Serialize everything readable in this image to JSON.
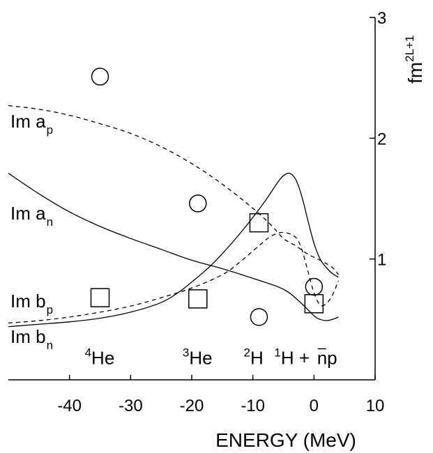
{
  "chart_data": {
    "type": "line",
    "title": "",
    "xlabel": "ENERGY (MeV)",
    "ylabel": "fm",
    "ylabel_sup": "2L+1",
    "xlim": [
      -50,
      10
    ],
    "ylim": [
      0,
      3
    ],
    "x_ticks": [
      -40,
      -30,
      -20,
      -10,
      0,
      10
    ],
    "y_ticks": [
      1,
      2,
      3
    ],
    "grid": false,
    "series": [
      {
        "name": "Im a_p",
        "label_main": "Im a",
        "label_sub": "p",
        "style": "dashed",
        "points": [
          [
            -50,
            2.27
          ],
          [
            -45,
            2.24
          ],
          [
            -40,
            2.19
          ],
          [
            -35,
            2.12
          ],
          [
            -30,
            2.04
          ],
          [
            -25,
            1.93
          ],
          [
            -20,
            1.79
          ],
          [
            -15,
            1.62
          ],
          [
            -10,
            1.42
          ],
          [
            -7,
            1.28
          ],
          [
            -5,
            1.17
          ],
          [
            -3,
            1.11
          ],
          [
            -1,
            1.04
          ],
          [
            1,
            0.99
          ],
          [
            3,
            0.93
          ],
          [
            4,
            0.87
          ]
        ]
      },
      {
        "name": "Im a_n",
        "label_main": "Im a",
        "label_sub": "n",
        "style": "solid",
        "points": [
          [
            -50,
            1.71
          ],
          [
            -45,
            1.54
          ],
          [
            -40,
            1.39
          ],
          [
            -35,
            1.27
          ],
          [
            -30,
            1.17
          ],
          [
            -25,
            1.08
          ],
          [
            -20,
            0.99
          ],
          [
            -15,
            0.92
          ],
          [
            -10,
            0.84
          ],
          [
            -5,
            0.75
          ],
          [
            -2,
            0.63
          ],
          [
            0,
            0.53
          ],
          [
            1,
            0.5
          ],
          [
            2,
            0.49
          ],
          [
            3,
            0.5
          ],
          [
            4,
            0.52
          ]
        ]
      },
      {
        "name": "Im b_p",
        "label_main": "Im b",
        "label_sub": "p",
        "style": "dashed",
        "points": [
          [
            -50,
            0.47
          ],
          [
            -45,
            0.49
          ],
          [
            -40,
            0.52
          ],
          [
            -35,
            0.56
          ],
          [
            -30,
            0.61
          ],
          [
            -25,
            0.68
          ],
          [
            -20,
            0.76
          ],
          [
            -15,
            0.87
          ],
          [
            -12,
            0.98
          ],
          [
            -9,
            1.11
          ],
          [
            -7,
            1.19
          ],
          [
            -5,
            1.22
          ],
          [
            -3,
            1.18
          ],
          [
            -2,
            1.08
          ],
          [
            -1,
            0.9
          ],
          [
            0,
            0.72
          ],
          [
            1,
            0.62
          ],
          [
            2,
            0.63
          ],
          [
            3,
            0.7
          ],
          [
            4,
            0.82
          ]
        ]
      },
      {
        "name": "Im b_n",
        "label_main": "Im b",
        "label_sub": "n",
        "style": "solid",
        "points": [
          [
            -50,
            0.44
          ],
          [
            -45,
            0.46
          ],
          [
            -40,
            0.48
          ],
          [
            -35,
            0.51
          ],
          [
            -30,
            0.56
          ],
          [
            -25,
            0.64
          ],
          [
            -22,
            0.73
          ],
          [
            -20,
            0.81
          ],
          [
            -17,
            0.94
          ],
          [
            -14,
            1.1
          ],
          [
            -11,
            1.28
          ],
          [
            -8,
            1.48
          ],
          [
            -6,
            1.63
          ],
          [
            -5,
            1.69
          ],
          [
            -4,
            1.71
          ],
          [
            -3,
            1.66
          ],
          [
            -2,
            1.52
          ],
          [
            -1,
            1.32
          ],
          [
            0,
            1.13
          ],
          [
            1,
            1.0
          ],
          [
            2,
            0.93
          ],
          [
            3,
            0.88
          ],
          [
            4,
            0.85
          ]
        ]
      }
    ],
    "markers": [
      {
        "shape": "circle",
        "x": -35,
        "y": 2.51
      },
      {
        "shape": "circle",
        "x": -19,
        "y": 1.46
      },
      {
        "shape": "circle",
        "x": -9,
        "y": 0.52
      },
      {
        "shape": "circle",
        "x": 0,
        "y": 0.77
      },
      {
        "shape": "square",
        "x": -35,
        "y": 0.68
      },
      {
        "shape": "square",
        "x": -19,
        "y": 0.67
      },
      {
        "shape": "square",
        "x": -9,
        "y": 1.3
      },
      {
        "shape": "square",
        "x": 0,
        "y": 0.63
      }
    ],
    "annotations": [
      {
        "sup": "4",
        "text": "He",
        "x": -37.5,
        "y": 0.13
      },
      {
        "sup": "3",
        "text": "He",
        "x": -21.5,
        "y": 0.13
      },
      {
        "sup": "2",
        "text": "H",
        "x": -11.5,
        "y": 0.13
      },
      {
        "sup": "1",
        "text": "H +",
        "x": -6.5,
        "y": 0.13
      },
      {
        "text": "np",
        "bar_over": "n",
        "x": 0.5,
        "y": 0.13
      }
    ]
  }
}
